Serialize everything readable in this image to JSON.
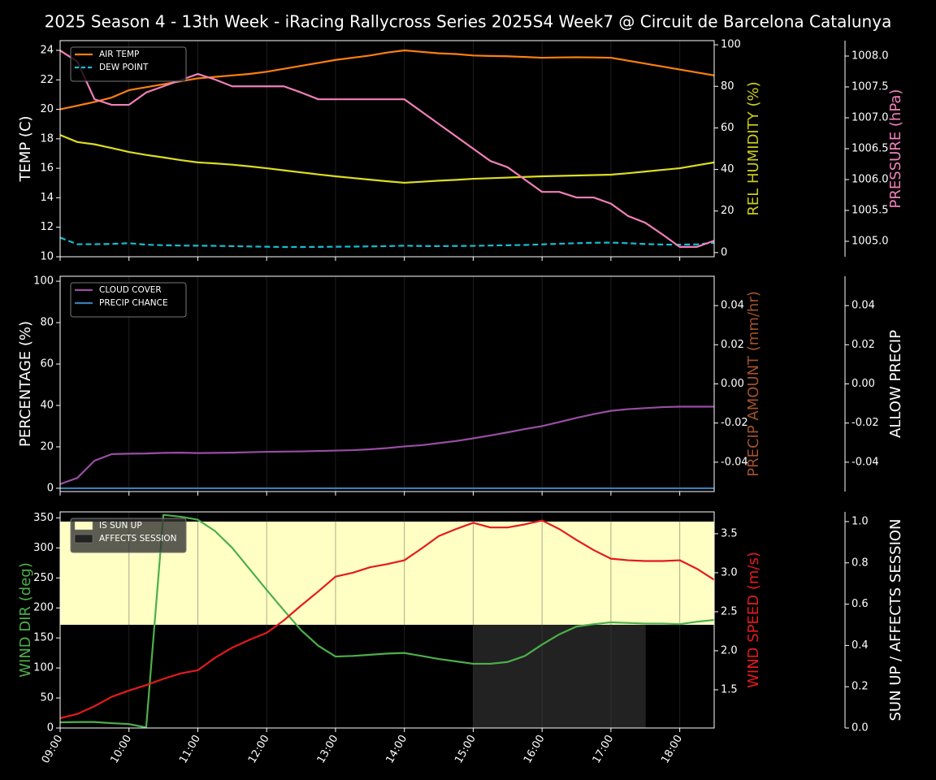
{
  "chart_data": [
    {
      "type": "line",
      "title": "2025 Season 4 - 13th Week - iRacing Rallycross Series 2025S4 Week7 @ Circuit de Barcelona Catalunya",
      "x": [
        9,
        9.25,
        9.5,
        9.75,
        10,
        10.25,
        10.5,
        10.75,
        11,
        11.25,
        11.5,
        11.75,
        12,
        12.25,
        12.5,
        12.75,
        13,
        13.25,
        13.5,
        13.75,
        14,
        14.25,
        14.5,
        14.75,
        15,
        15.25,
        15.5,
        15.75,
        16,
        16.25,
        16.5,
        16.75,
        17,
        17.25,
        17.5,
        17.75,
        18,
        18.25,
        18.5
      ],
      "xlim": [
        9,
        18.5
      ],
      "xticks": [
        9,
        10,
        11,
        12,
        13,
        14,
        15,
        16,
        17,
        18
      ],
      "grid": "x",
      "legend": "upper left",
      "ylabel": "TEMP (C)",
      "ylabel_color": "#ffffff",
      "ylim": [
        10,
        24.66
      ],
      "yticks": [
        10,
        12,
        14,
        16,
        18,
        20,
        22,
        24
      ],
      "y2label": "REL HUMIDITY (%)",
      "y2label_color": "#cccc22",
      "y2lim": [
        -2,
        102
      ],
      "y2ticks": [
        0,
        20,
        40,
        60,
        80,
        100
      ],
      "y3label": "PRESSURE (hPa)",
      "y3label_color": "#f080b8",
      "y3lim": [
        1004.75,
        1008.25
      ],
      "y3ticks": [
        {
          "value": 1005,
          "label": "1005.0"
        },
        {
          "value": 1005.5,
          "label": "1005.5"
        },
        {
          "value": 1006,
          "label": "1006.0"
        },
        {
          "value": 1006.5,
          "label": "1006.5"
        },
        {
          "value": 1007,
          "label": "1007.0"
        },
        {
          "value": 1007.5,
          "label": "1007.5"
        },
        {
          "value": 1008,
          "label": "1008.0"
        }
      ],
      "series": [
        {
          "name": "AIR TEMP",
          "color": "#ff7f0e",
          "axis": "y",
          "values": [
            20.0,
            20.25,
            20.5,
            20.8,
            21.3,
            21.5,
            21.7,
            21.9,
            22.1,
            22.2,
            22.3,
            22.4,
            22.55,
            22.75,
            22.95,
            23.15,
            23.35,
            23.5,
            23.65,
            23.85,
            24.0,
            23.9,
            23.8,
            23.75,
            23.65,
            23.62,
            23.6,
            23.55,
            23.5,
            23.52,
            23.53,
            23.52,
            23.5,
            23.3,
            23.1,
            22.9,
            22.7,
            22.5,
            22.3
          ]
        },
        {
          "name": "DEW POINT",
          "color": "#17becf",
          "dashed": true,
          "axis": "y",
          "values": [
            11.3,
            10.85,
            10.85,
            10.87,
            10.92,
            10.82,
            10.78,
            10.76,
            10.75,
            10.74,
            10.72,
            10.7,
            10.68,
            10.66,
            10.66,
            10.67,
            10.68,
            10.69,
            10.7,
            10.72,
            10.75,
            10.73,
            10.72,
            10.73,
            10.74,
            10.76,
            10.78,
            10.8,
            10.84,
            10.88,
            10.92,
            10.95,
            10.96,
            10.92,
            10.86,
            10.83,
            10.82,
            10.84,
            10.95
          ]
        },
        {
          "color": "#dddd22",
          "axis": "y2",
          "values": [
            56.6,
            53.2,
            52.1,
            50.3,
            48.4,
            47.0,
            45.8,
            44.5,
            43.4,
            42.9,
            42.3,
            41.5,
            40.6,
            39.6,
            38.6,
            37.6,
            36.7,
            35.9,
            35.1,
            34.3,
            33.6,
            34.1,
            34.6,
            35.0,
            35.5,
            35.8,
            36.1,
            36.4,
            36.7,
            36.9,
            37.1,
            37.3,
            37.5,
            38.2,
            39.0,
            39.8,
            40.6,
            42.0,
            43.4
          ]
        },
        {
          "color": "#f080b8",
          "axis": "y3",
          "values": [
            1008.09,
            1007.91,
            1007.3,
            1007.21,
            1007.21,
            1007.41,
            1007.51,
            1007.61,
            1007.71,
            1007.62,
            1007.51,
            1007.51,
            1007.51,
            1007.51,
            1007.41,
            1007.3,
            1007.3,
            1007.3,
            1007.3,
            1007.3,
            1007.3,
            1007.1,
            1006.9,
            1006.7,
            1006.5,
            1006.3,
            1006.2,
            1006.0,
            1005.8,
            1005.8,
            1005.71,
            1005.71,
            1005.61,
            1005.41,
            1005.3,
            1005.11,
            1004.91,
            1004.91,
            1005.01
          ]
        }
      ]
    },
    {
      "type": "line",
      "x": [
        9,
        9.25,
        9.5,
        9.75,
        10,
        10.25,
        10.5,
        10.75,
        11,
        11.25,
        11.5,
        11.75,
        12,
        12.25,
        12.5,
        12.75,
        13,
        13.25,
        13.5,
        13.75,
        14,
        14.25,
        14.5,
        14.75,
        15,
        15.25,
        15.5,
        15.75,
        16,
        16.25,
        16.5,
        16.75,
        17,
        17.25,
        17.5,
        17.75,
        18,
        18.25,
        18.5
      ],
      "xlim": [
        9,
        18.5
      ],
      "xticks": [
        9,
        10,
        11,
        12,
        13,
        14,
        15,
        16,
        17,
        18
      ],
      "grid": "x",
      "legend": "upper left",
      "ylabel": "PERCENTAGE (%)",
      "ylabel_color": "#ffffff",
      "ylim": [
        -1.6,
        102.4
      ],
      "yticks": [
        0,
        20,
        40,
        60,
        80,
        100
      ],
      "y2label": "PRECIP AMOUNT (mm/hr)",
      "y2label_color": "#a0522d",
      "y2lim": [
        -0.055,
        0.055
      ],
      "y2ticks": [
        -0.04,
        -0.02,
        {
          "value": 0,
          "label": "0.00"
        },
        0.02,
        0.04
      ],
      "y3label": "ALLOW PRECIP",
      "y3label_color": "#ffffff",
      "y3lim": [
        -0.055,
        0.055
      ],
      "y3ticks": [
        -0.04,
        -0.02,
        {
          "value": 0,
          "label": "0.00"
        },
        0.02,
        0.04
      ],
      "series": [
        {
          "name": "CLOUD COVER",
          "color": "#984ea3",
          "axis": "y",
          "values": [
            2,
            5,
            13.3,
            16.5,
            16.7,
            16.8,
            17.1,
            17.2,
            17.0,
            17.1,
            17.2,
            17.4,
            17.6,
            17.7,
            17.8,
            18.0,
            18.2,
            18.4,
            18.8,
            19.4,
            20.2,
            20.8,
            21.8,
            22.8,
            24.1,
            25.5,
            27,
            28.6,
            30,
            32,
            34,
            35.8,
            37.4,
            38.2,
            38.7,
            39.2,
            39.4,
            39.4,
            39.4
          ]
        },
        {
          "name": "PRECIP CHANCE",
          "color": "#377eb8",
          "axis": "y",
          "values": [
            0,
            0,
            0,
            0,
            0,
            0,
            0,
            0,
            0,
            0,
            0,
            0,
            0,
            0,
            0,
            0,
            0,
            0,
            0,
            0,
            0,
            0,
            0,
            0,
            0,
            0,
            0,
            0,
            0,
            0,
            0,
            0,
            0,
            0,
            0,
            0,
            0,
            0,
            0
          ]
        }
      ]
    },
    {
      "type": "line",
      "x": [
        9,
        9.25,
        9.5,
        9.75,
        10,
        10.25,
        10.5,
        10.75,
        11,
        11.25,
        11.5,
        11.75,
        12,
        12.25,
        12.5,
        12.75,
        13,
        13.25,
        13.5,
        13.75,
        14,
        14.25,
        14.5,
        14.75,
        15,
        15.25,
        15.5,
        15.75,
        16,
        16.25,
        16.5,
        16.75,
        17,
        17.25,
        17.5,
        17.75,
        18,
        18.25,
        18.5
      ],
      "xlim": [
        9,
        18.5
      ],
      "grid": "x",
      "legend": "upper left",
      "xticks": [
        {
          "value": 9,
          "label": "09:00"
        },
        {
          "value": 10,
          "label": "10:00"
        },
        {
          "value": 11,
          "label": "11:00"
        },
        {
          "value": 12,
          "label": "12:00"
        },
        {
          "value": 13,
          "label": "13:00"
        },
        {
          "value": 14,
          "label": "14:00"
        },
        {
          "value": 15,
          "label": "15:00"
        },
        {
          "value": 16,
          "label": "16:00"
        },
        {
          "value": 17,
          "label": "17:00"
        },
        {
          "value": 18,
          "label": "18:00"
        }
      ],
      "ylabel": "WIND DIR (deg)",
      "ylabel_color": "#4daf4a",
      "ylim": [
        0,
        360
      ],
      "yticks": [
        0,
        50,
        100,
        150,
        200,
        250,
        300,
        350
      ],
      "y2label": "WIND SPEED (m/s)",
      "y2label_color": "#e41a1c",
      "y2lim": [
        1.01,
        3.78
      ],
      "y2ticks": [
        1.5,
        {
          "value": 2,
          "label": "2.0"
        },
        2.5,
        {
          "value": 3,
          "label": "3.0"
        },
        3.5
      ],
      "y3label": "SUN UP / AFFECTS SESSION",
      "y3label_color": "#ffffff",
      "y3lim": [
        0,
        1.047
      ],
      "y3ticks": [
        {
          "value": 0,
          "label": "0.0"
        },
        0.2,
        0.4,
        0.6,
        0.8,
        {
          "value": 1,
          "label": "1.0"
        }
      ],
      "series": [
        {
          "name": "IS SUN UP",
          "color": "#ffffc4",
          "kind": "band",
          "part": "upper",
          "axis": "y3",
          "values": [
            1,
            1,
            1,
            1,
            1,
            1,
            1,
            1,
            1,
            1,
            1,
            1,
            1,
            1,
            1,
            1,
            1,
            1,
            1,
            1,
            1,
            1,
            1,
            1,
            1,
            1,
            1,
            1,
            1,
            1,
            1,
            1,
            1,
            1,
            1,
            1,
            1,
            1,
            1
          ]
        },
        {
          "name": "AFFECTS SESSION",
          "color": "#222222",
          "kind": "band",
          "part": "lower",
          "axis": "y3",
          "values": [
            0,
            0,
            0,
            0,
            0,
            0,
            0,
            0,
            0,
            0,
            0,
            0,
            0,
            0,
            0,
            0,
            0,
            0,
            0,
            0,
            0,
            0,
            0,
            0,
            1,
            1,
            1,
            1,
            1,
            1,
            1,
            1,
            1,
            1,
            0,
            0,
            0,
            0,
            0
          ]
        },
        {
          "color": "#4daf4a",
          "axis": "y",
          "values": [
            9.5,
            10,
            10,
            8,
            6.5,
            1,
            355,
            352,
            347,
            328,
            300,
            265,
            230,
            196,
            163,
            137,
            119,
            120,
            122,
            124,
            125,
            120,
            115,
            111,
            107,
            107,
            110,
            120,
            139,
            156,
            169,
            173,
            176,
            175,
            174,
            174,
            173,
            177,
            180
          ]
        },
        {
          "color": "#e41a1c",
          "axis": "y2",
          "values": [
            1.135,
            1.19,
            1.29,
            1.41,
            1.49,
            1.56,
            1.64,
            1.71,
            1.75,
            1.91,
            2.04,
            2.14,
            2.23,
            2.39,
            2.58,
            2.76,
            2.95,
            3.0,
            3.07,
            3.11,
            3.16,
            3.31,
            3.47,
            3.56,
            3.64,
            3.58,
            3.58,
            3.62,
            3.67,
            3.56,
            3.42,
            3.29,
            3.18,
            3.16,
            3.15,
            3.15,
            3.16,
            3.05,
            2.91
          ]
        }
      ]
    }
  ]
}
